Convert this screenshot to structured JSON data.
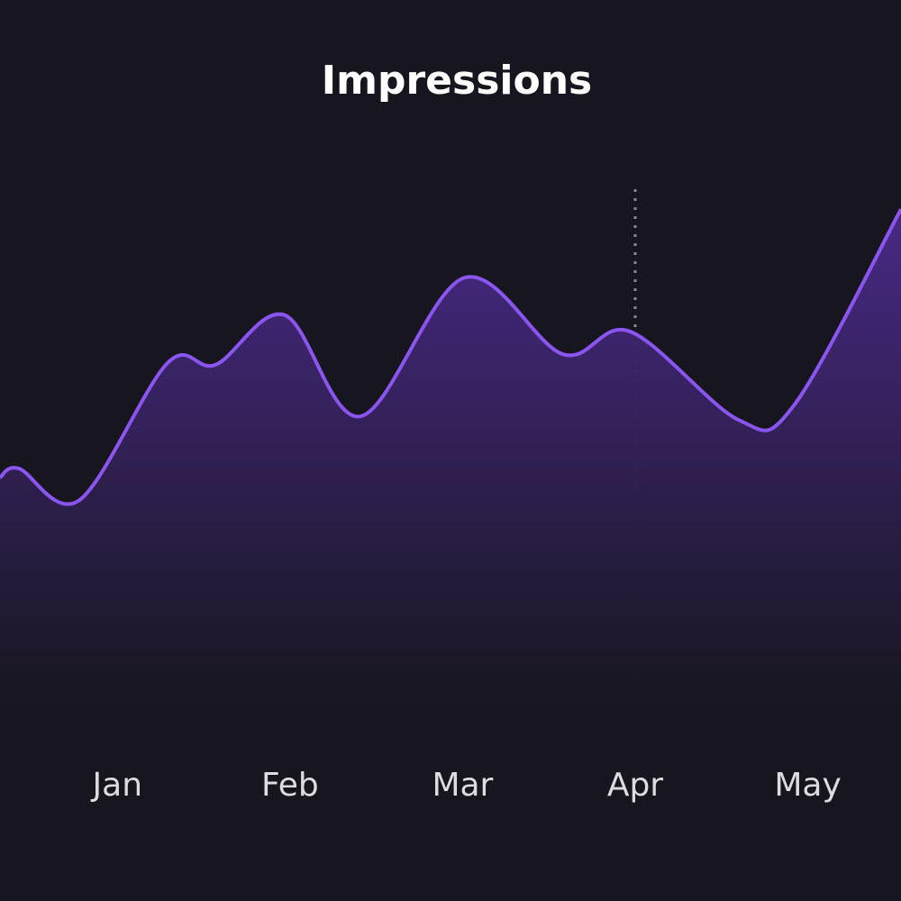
{
  "chart_data": {
    "type": "area",
    "title": "Impressions",
    "x": [
      -0.68,
      -0.57,
      -0.22,
      0.29,
      0.57,
      0.97,
      1.41,
      2.01,
      2.58,
      2.97,
      3.6,
      3.92,
      4.54
    ],
    "series": [
      {
        "name": "Impressions",
        "color": "#8b55f2",
        "values": [
          43.6,
          45.3,
          39.3,
          65.3,
          65.0,
          74.4,
          55.2,
          81.5,
          67.0,
          71.3,
          54.5,
          57.3,
          94.5
        ]
      }
    ],
    "xlim": [
      -0.68,
      4.54
    ],
    "ylim": [
      0,
      100
    ],
    "xticks": [
      {
        "value": 0,
        "label": "Jan"
      },
      {
        "value": 1,
        "label": "Feb"
      },
      {
        "value": 2,
        "label": "Mar"
      },
      {
        "value": 3,
        "label": "Apr"
      },
      {
        "value": 4,
        "label": "May"
      }
    ],
    "marker_x": 3,
    "grid": false
  }
}
